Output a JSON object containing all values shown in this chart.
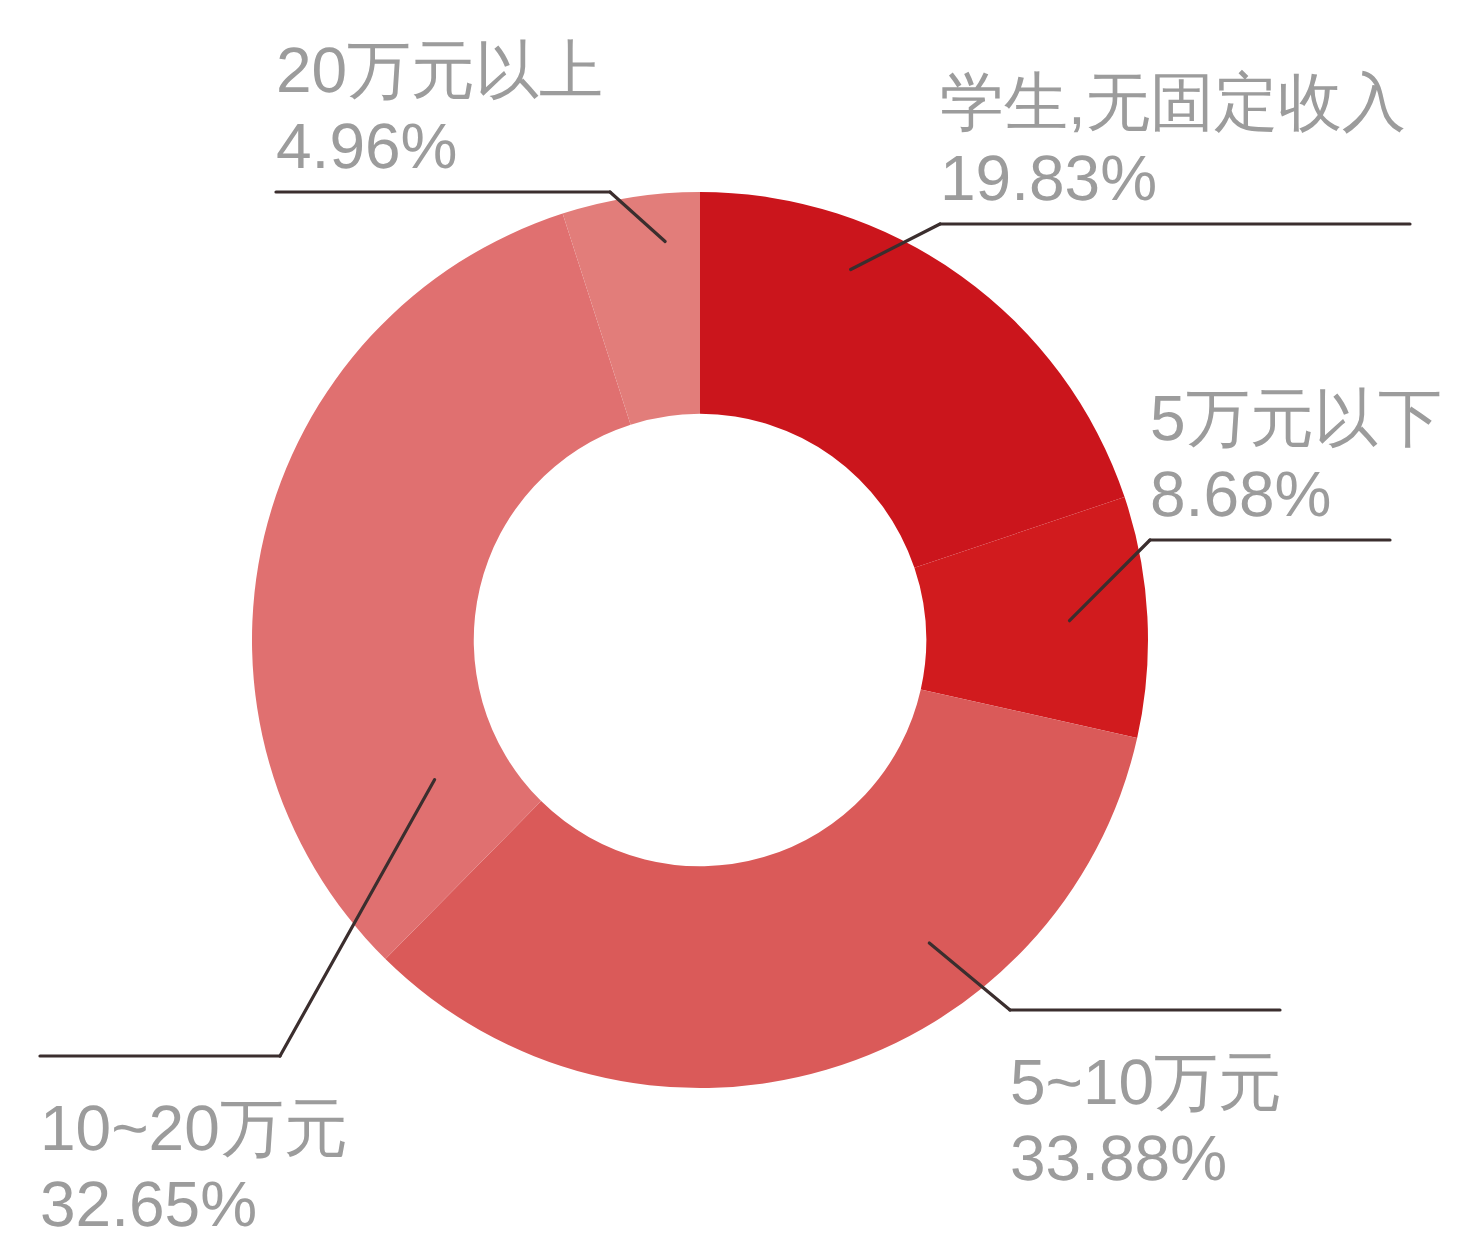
{
  "chart_data": {
    "type": "donut",
    "categories": [
      "学生,无固定收入",
      "5万元以下",
      "5~10万元",
      "10~20万元",
      "20万元以上"
    ],
    "values": [
      19.83,
      8.68,
      33.88,
      32.65,
      4.96
    ],
    "value_labels": [
      "19.83%",
      "8.68%",
      "33.88%",
      "32.65%",
      "4.96%"
    ],
    "colors": [
      "#cb151c",
      "#d11b1e",
      "#da5a59",
      "#e07070",
      "#e27d7a"
    ]
  }
}
